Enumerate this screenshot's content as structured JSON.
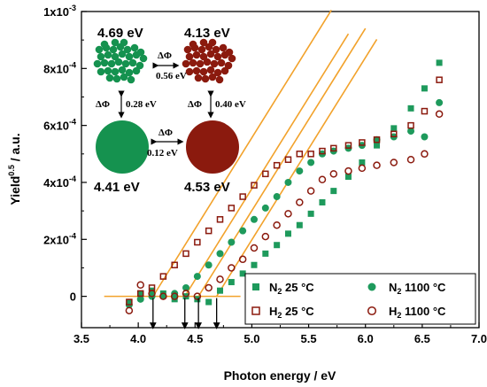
{
  "chart_data": {
    "type": "scatter",
    "xlabel": "Photon energy / eV",
    "ylabel_main": "Yield",
    "ylabel_sup": "0.5",
    "ylabel_tail": " / a.u.",
    "xlim": [
      3.5,
      7.0
    ],
    "ylim": [
      -0.00011,
      0.001
    ],
    "x_ticks": [
      3.5,
      4.0,
      4.5,
      5.0,
      5.5,
      6.0,
      6.5,
      7.0
    ],
    "x_tick_labels": [
      "3.5",
      "4.0",
      "4.5",
      "5.0",
      "5.5",
      "6.0",
      "6.5",
      "7.0"
    ],
    "y_ticks": [
      0,
      0.0002,
      0.0004,
      0.0006,
      0.0008,
      0.001
    ],
    "y_tick_mantissa": [
      "0",
      "2x10",
      "4x10",
      "6x10",
      "8x10",
      "1x10"
    ],
    "y_tick_exponent": [
      "",
      "-4",
      "-4",
      "-4",
      "-4",
      "-3"
    ],
    "legend_position": "bottom-right",
    "series": [
      {
        "name": "N2 25 °C",
        "name_main": "N",
        "name_sub": "2",
        "name_tail": " 25 °C",
        "marker": "filled-square",
        "color": "#1e9a5c",
        "work_function": 4.69,
        "x": [
          3.92,
          4.02,
          4.12,
          4.22,
          4.32,
          4.42,
          4.52,
          4.62,
          4.72,
          4.82,
          4.92,
          5.02,
          5.12,
          5.22,
          5.32,
          5.42,
          5.52,
          5.62,
          5.72,
          5.85,
          5.97,
          6.1,
          6.25,
          6.4,
          6.52,
          6.65
        ],
        "y": [
          -2e-05,
          1e-05,
          2e-05,
          1e-05,
          -1e-05,
          0.0,
          -1e-05,
          -2e-05,
          2e-05,
          5e-05,
          8e-05,
          0.00011,
          0.00015,
          0.00018,
          0.00022,
          0.00025,
          0.00029,
          0.00033,
          0.00037,
          0.00042,
          0.00047,
          0.00053,
          0.00059,
          0.00066,
          0.00073,
          0.00082
        ]
      },
      {
        "name": "N2 1100 °C",
        "name_main": "N",
        "name_sub": "2",
        "name_tail": " 1100 °C",
        "marker": "filled-circle",
        "color": "#1e9a5c",
        "work_function": 4.41,
        "x": [
          3.92,
          4.02,
          4.12,
          4.22,
          4.32,
          4.42,
          4.52,
          4.62,
          4.72,
          4.82,
          4.92,
          5.02,
          5.12,
          5.22,
          5.32,
          5.42,
          5.52,
          5.62,
          5.72,
          5.85,
          5.97,
          6.1,
          6.25,
          6.4,
          6.52,
          6.65
        ],
        "y": [
          -3e-05,
          -1e-05,
          0.0,
          0.0,
          1e-05,
          3e-05,
          7e-05,
          0.00011,
          0.00015,
          0.00019,
          0.00023,
          0.00027,
          0.00031,
          0.00035,
          0.0004,
          0.00044,
          0.00047,
          0.0005,
          0.00051,
          0.00052,
          0.00053,
          0.00055,
          0.00056,
          0.00058,
          0.00056,
          0.00068
        ]
      },
      {
        "name": "H2 25 °C",
        "name_main": "H",
        "name_sub": "2",
        "name_tail": " 25 °C",
        "marker": "open-square",
        "color": "#8b1a0e",
        "work_function": 4.13,
        "x": [
          3.92,
          4.02,
          4.12,
          4.22,
          4.32,
          4.42,
          4.52,
          4.62,
          4.72,
          4.82,
          4.92,
          5.02,
          5.12,
          5.22,
          5.32,
          5.42,
          5.52,
          5.62,
          5.72,
          5.85,
          5.97,
          6.1,
          6.25,
          6.4,
          6.52,
          6.65
        ],
        "y": [
          -2e-05,
          1e-05,
          3e-05,
          7e-05,
          0.00011,
          0.00015,
          0.00019,
          0.00023,
          0.00027,
          0.00031,
          0.00035,
          0.00039,
          0.00043,
          0.00046,
          0.00048,
          0.0005,
          0.0005,
          0.00051,
          0.00052,
          0.00053,
          0.00054,
          0.00055,
          0.00057,
          0.0006,
          0.00065,
          0.00076
        ]
      },
      {
        "name": "H2 1100 °C",
        "name_main": "H",
        "name_sub": "2",
        "name_tail": " 1100 °C",
        "marker": "open-circle",
        "color": "#8b1a0e",
        "work_function": 4.53,
        "x": [
          3.92,
          4.02,
          4.12,
          4.22,
          4.32,
          4.42,
          4.52,
          4.62,
          4.72,
          4.82,
          4.92,
          5.02,
          5.12,
          5.22,
          5.32,
          5.42,
          5.52,
          5.62,
          5.72,
          5.85,
          5.97,
          6.1,
          6.25,
          6.4,
          6.52,
          6.65
        ],
        "y": [
          -5e-05,
          4e-05,
          1e-05,
          0.0,
          0.0,
          1e-05,
          0.0,
          3e-05,
          6e-05,
          0.0001,
          0.00013,
          0.00017,
          0.00021,
          0.00025,
          0.00029,
          0.00033,
          0.00037,
          0.00041,
          0.00043,
          0.00044,
          0.00045,
          0.00046,
          0.00047,
          0.00048,
          0.0005,
          0.00064
        ]
      }
    ],
    "baseline": {
      "x": [
        3.7,
        4.9
      ],
      "y": 0.0
    },
    "fit_lines": [
      {
        "x0": 4.13,
        "x1": 5.7,
        "slope": 0.00064
      },
      {
        "x0": 4.41,
        "x1": 5.85,
        "slope": 0.00064
      },
      {
        "x0": 4.53,
        "x1": 6.0,
        "slope": 0.00064
      },
      {
        "x0": 4.69,
        "x1": 6.1,
        "slope": 0.00064
      }
    ],
    "threshold_arrows": [
      4.13,
      4.41,
      4.53,
      4.69
    ],
    "inset": {
      "labels": {
        "top_left": "4.69 eV",
        "top_right": "4.13 eV",
        "bottom_left": "4.41 eV",
        "bottom_right": "4.53 eV"
      },
      "dphi_symbol": "ΔΦ",
      "dphi_values": {
        "top": "0.56 eV",
        "left": "0.28 eV",
        "right": "0.40 eV",
        "middle": "0.12 eV"
      },
      "colors": {
        "green": "#15924f",
        "red": "#8b1a0e"
      }
    }
  }
}
